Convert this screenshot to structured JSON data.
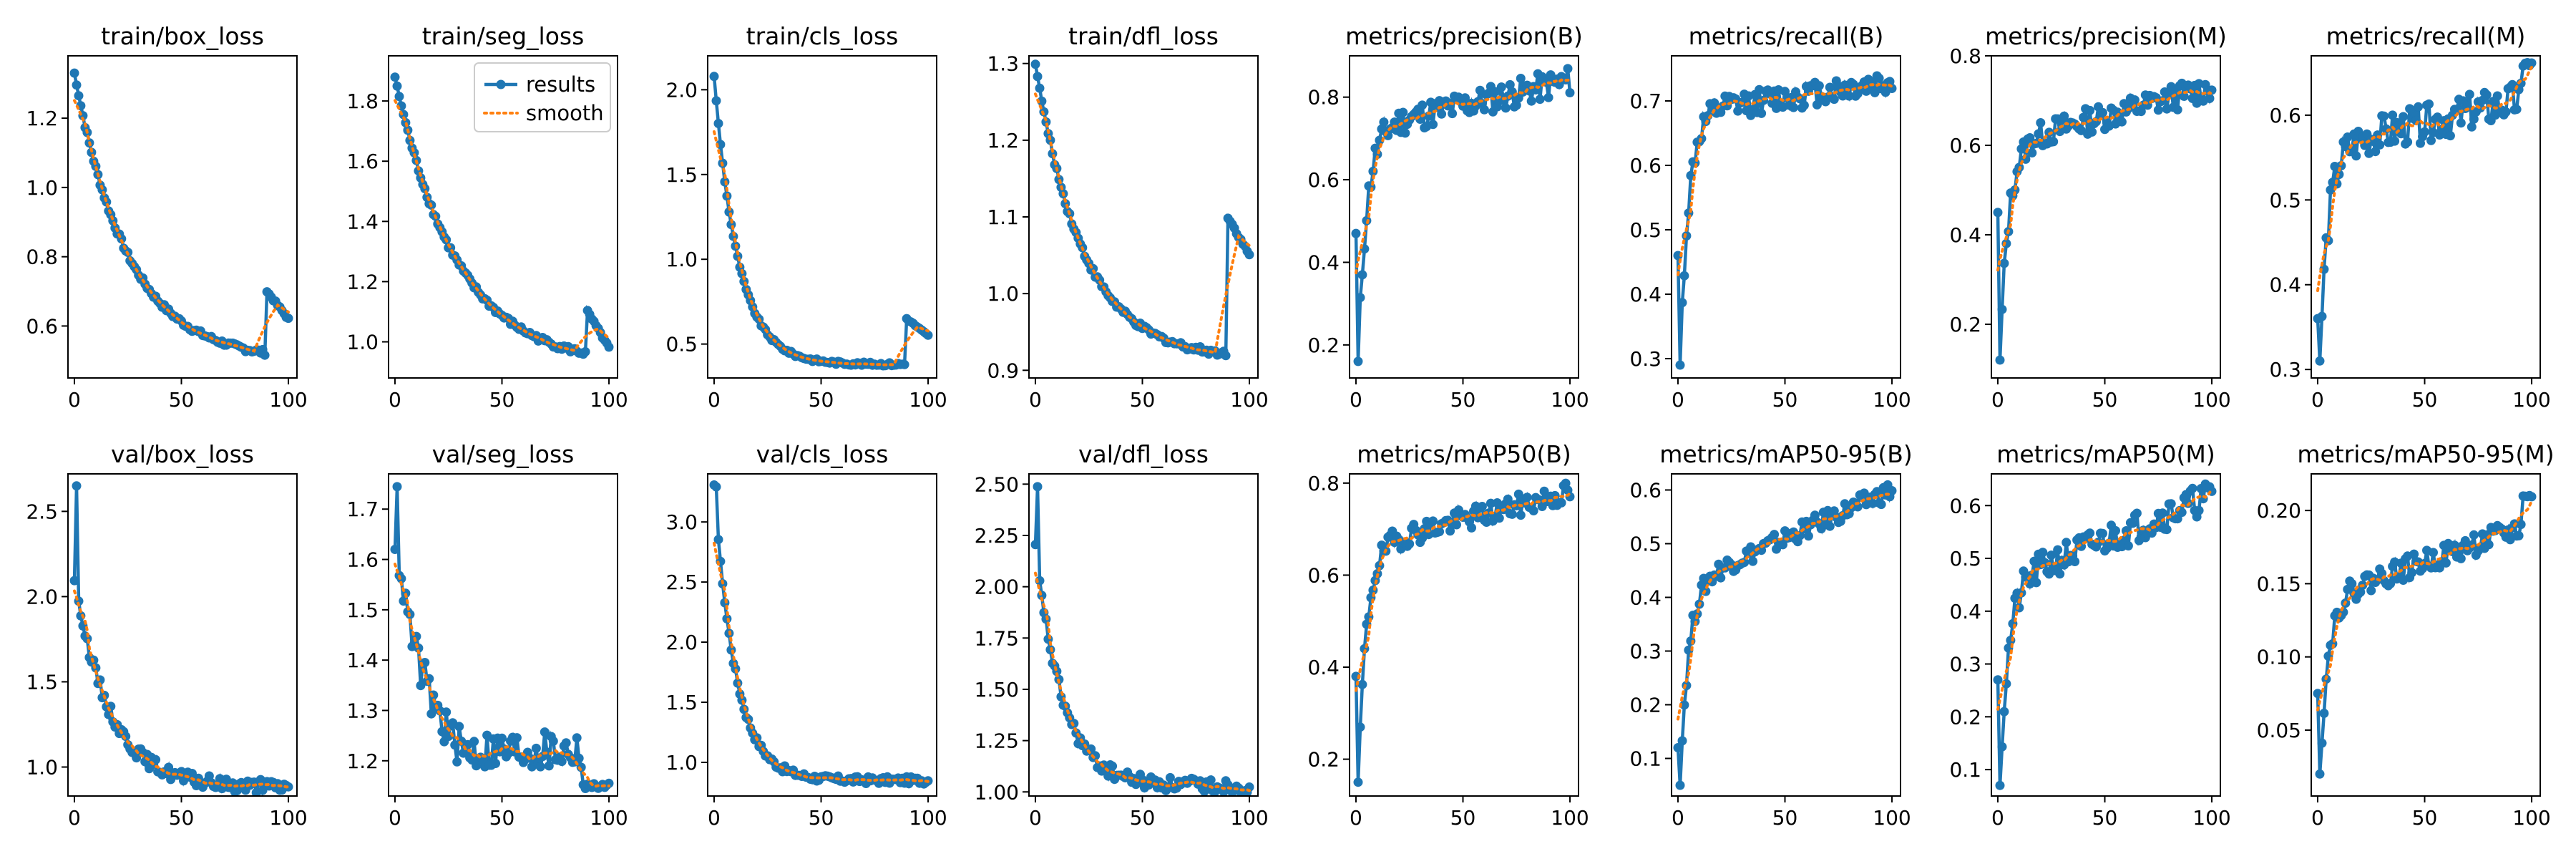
{
  "figure": {
    "colors": {
      "results": "#1f77b4",
      "smooth": "#ff7f0e",
      "axis": "#000000",
      "background": "#ffffff"
    },
    "legend": {
      "entries": [
        "results",
        "smooth"
      ],
      "placement": "top-right",
      "panel_index": 1
    }
  },
  "chart_data": [
    {
      "type": "line",
      "title": "train/box_loss",
      "xlim": [
        -3,
        104
      ],
      "ylim": [
        0.45,
        1.38
      ],
      "xticks": [
        0,
        50,
        100
      ],
      "xtick_labels": [
        "0",
        "50",
        "100"
      ],
      "yticks": [
        0.6,
        0.8,
        1.0,
        1.2
      ],
      "ytick_labels": [
        "0.6",
        "0.8",
        "1.0",
        "1.2"
      ],
      "shape": "decay",
      "start": 1.33,
      "end": 0.5,
      "rate": 0.04,
      "noise": 0.008,
      "spike": {
        "at": 90,
        "to": 0.7,
        "end": 0.62
      }
    },
    {
      "type": "line",
      "title": "train/seg_loss",
      "xlim": [
        -3,
        104
      ],
      "ylim": [
        0.88,
        1.95
      ],
      "xticks": [
        0,
        50,
        100
      ],
      "xtick_labels": [
        "0",
        "50",
        "100"
      ],
      "yticks": [
        1.0,
        1.2,
        1.4,
        1.6,
        1.8
      ],
      "ytick_labels": [
        "1.0",
        "1.2",
        "1.4",
        "1.6",
        "1.8"
      ],
      "shape": "decay",
      "start": 1.88,
      "end": 0.92,
      "rate": 0.035,
      "noise": 0.01,
      "spike": {
        "at": 90,
        "to": 1.1,
        "end": 0.98
      }
    },
    {
      "type": "line",
      "title": "train/cls_loss",
      "xlim": [
        -3,
        104
      ],
      "ylim": [
        0.3,
        2.2
      ],
      "xticks": [
        0,
        50,
        100
      ],
      "xtick_labels": [
        "0",
        "50",
        "100"
      ],
      "yticks": [
        0.5,
        1.0,
        1.5,
        2.0
      ],
      "ytick_labels": [
        "0.5",
        "1.0",
        "1.5",
        "2.0"
      ],
      "shape": "decay",
      "start": 2.08,
      "end": 0.38,
      "rate": 0.09,
      "noise": 0.01,
      "spike": {
        "at": 90,
        "to": 0.65,
        "end": 0.55
      }
    },
    {
      "type": "line",
      "title": "train/dfl_loss",
      "xlim": [
        -3,
        104
      ],
      "ylim": [
        0.89,
        1.31
      ],
      "xticks": [
        0,
        50,
        100
      ],
      "xtick_labels": [
        "0",
        "50",
        "100"
      ],
      "yticks": [
        0.9,
        1.0,
        1.1,
        1.2,
        1.3
      ],
      "ytick_labels": [
        "0.9",
        "1.0",
        "1.1",
        "1.2",
        "1.3"
      ],
      "shape": "decay",
      "start": 1.3,
      "end": 0.915,
      "rate": 0.045,
      "noise": 0.004,
      "spike": {
        "at": 90,
        "to": 1.1,
        "end": 1.05
      }
    },
    {
      "type": "line",
      "title": "metrics/precision(B)",
      "xlim": [
        -3,
        104
      ],
      "ylim": [
        0.12,
        0.9
      ],
      "xticks": [
        0,
        50,
        100
      ],
      "xtick_labels": [
        "0",
        "50",
        "100"
      ],
      "yticks": [
        0.2,
        0.4,
        0.6,
        0.8
      ],
      "ytick_labels": [
        "0.2",
        "0.4",
        "0.6",
        "0.8"
      ],
      "shape": "rise",
      "start": 0.47,
      "dip": 0.16,
      "plateau": 0.72,
      "end": 0.84,
      "noise": 0.035
    },
    {
      "type": "line",
      "title": "metrics/recall(B)",
      "xlim": [
        -3,
        104
      ],
      "ylim": [
        0.27,
        0.77
      ],
      "xticks": [
        0,
        50,
        100
      ],
      "xtick_labels": [
        "0",
        "50",
        "100"
      ],
      "yticks": [
        0.3,
        0.4,
        0.5,
        0.6,
        0.7
      ],
      "ytick_labels": [
        "0.3",
        "0.4",
        "0.5",
        "0.6",
        "0.7"
      ],
      "shape": "rise",
      "start": 0.46,
      "dip": 0.29,
      "plateau": 0.68,
      "end": 0.73,
      "noise": 0.02
    },
    {
      "type": "line",
      "title": "metrics/precision(M)",
      "xlim": [
        -3,
        104
      ],
      "ylim": [
        0.08,
        0.8
      ],
      "xticks": [
        0,
        50,
        100
      ],
      "xtick_labels": [
        "0",
        "50",
        "100"
      ],
      "yticks": [
        0.2,
        0.4,
        0.6,
        0.8
      ],
      "ytick_labels": [
        "0.2",
        "0.4",
        "0.6",
        "0.8"
      ],
      "shape": "rise",
      "start": 0.45,
      "dip": 0.12,
      "plateau": 0.6,
      "end": 0.73,
      "noise": 0.03
    },
    {
      "type": "line",
      "title": "metrics/recall(M)",
      "xlim": [
        -3,
        104
      ],
      "ylim": [
        0.29,
        0.67
      ],
      "xticks": [
        0,
        50,
        100
      ],
      "xtick_labels": [
        "0",
        "50",
        "100"
      ],
      "yticks": [
        0.3,
        0.4,
        0.5,
        0.6
      ],
      "ytick_labels": [
        "0.3",
        "0.4",
        "0.5",
        "0.6"
      ],
      "shape": "rise",
      "start": 0.36,
      "dip": 0.31,
      "plateau": 0.56,
      "end": 0.62,
      "noise": 0.022,
      "tail": 0.66
    },
    {
      "type": "line",
      "title": "val/box_loss",
      "xlim": [
        -3,
        104
      ],
      "ylim": [
        0.83,
        2.72
      ],
      "xticks": [
        0,
        50,
        100
      ],
      "xtick_labels": [
        "0",
        "50",
        "100"
      ],
      "yticks": [
        1.0,
        1.5,
        2.0,
        2.5
      ],
      "ytick_labels": [
        "1.0",
        "1.5",
        "2.0",
        "2.5"
      ],
      "shape": "decay",
      "start": 2.1,
      "peak": 2.65,
      "end": 0.88,
      "rate": 0.06,
      "noise": 0.04
    },
    {
      "type": "line",
      "title": "val/seg_loss",
      "xlim": [
        -3,
        104
      ],
      "ylim": [
        1.13,
        1.77
      ],
      "xticks": [
        0,
        50,
        100
      ],
      "xtick_labels": [
        "0",
        "50",
        "100"
      ],
      "yticks": [
        1.2,
        1.3,
        1.4,
        1.5,
        1.6,
        1.7
      ],
      "ytick_labels": [
        "1.2",
        "1.3",
        "1.4",
        "1.5",
        "1.6",
        "1.7"
      ],
      "shape": "decay",
      "start": 1.63,
      "peak": 1.75,
      "end": 1.15,
      "rate": 0.06,
      "noise": 0.04,
      "floor": 1.22
    },
    {
      "type": "line",
      "title": "val/cls_loss",
      "xlim": [
        -3,
        104
      ],
      "ylim": [
        0.72,
        3.4
      ],
      "xticks": [
        0,
        50,
        100
      ],
      "xtick_labels": [
        "0",
        "50",
        "100"
      ],
      "yticks": [
        1.0,
        1.5,
        2.0,
        2.5,
        3.0
      ],
      "ytick_labels": [
        "1.0",
        "1.5",
        "2.0",
        "2.5",
        "3.0"
      ],
      "shape": "decay",
      "start": 3.3,
      "peak": 3.3,
      "end": 0.85,
      "rate": 0.1,
      "noise": 0.03
    },
    {
      "type": "line",
      "title": "val/dfl_loss",
      "xlim": [
        -3,
        104
      ],
      "ylim": [
        0.98,
        2.55
      ],
      "xticks": [
        0,
        50,
        100
      ],
      "xtick_labels": [
        "0",
        "50",
        "100"
      ],
      "yticks": [
        1.0,
        1.25,
        1.5,
        1.75,
        2.0,
        2.25,
        2.5
      ],
      "ytick_labels": [
        "1.00",
        "1.25",
        "1.50",
        "1.75",
        "2.00",
        "2.25",
        "2.50"
      ],
      "shape": "decay",
      "start": 2.2,
      "peak": 2.48,
      "end": 1.03,
      "rate": 0.08,
      "noise": 0.035
    },
    {
      "type": "line",
      "title": "metrics/mAP50(B)",
      "xlim": [
        -3,
        104
      ],
      "ylim": [
        0.12,
        0.82
      ],
      "xticks": [
        0,
        50,
        100
      ],
      "xtick_labels": [
        "0",
        "50",
        "100"
      ],
      "yticks": [
        0.2,
        0.4,
        0.6,
        0.8
      ],
      "ytick_labels": [
        "0.2",
        "0.4",
        "0.6",
        "0.8"
      ],
      "shape": "rise",
      "start": 0.38,
      "dip": 0.15,
      "plateau": 0.66,
      "end": 0.78,
      "noise": 0.025
    },
    {
      "type": "line",
      "title": "metrics/mAP50-95(B)",
      "xlim": [
        -3,
        104
      ],
      "ylim": [
        0.03,
        0.63
      ],
      "xticks": [
        0,
        50,
        100
      ],
      "xtick_labels": [
        "0",
        "50",
        "100"
      ],
      "yticks": [
        0.1,
        0.2,
        0.3,
        0.4,
        0.5,
        0.6
      ],
      "ytick_labels": [
        "0.1",
        "0.2",
        "0.3",
        "0.4",
        "0.5",
        "0.6"
      ],
      "shape": "rise",
      "start": 0.12,
      "dip": 0.05,
      "plateau": 0.42,
      "end": 0.6,
      "noise": 0.018
    },
    {
      "type": "line",
      "title": "metrics/mAP50(M)",
      "xlim": [
        -3,
        104
      ],
      "ylim": [
        0.05,
        0.66
      ],
      "xticks": [
        0,
        50,
        100
      ],
      "xtick_labels": [
        "0",
        "50",
        "100"
      ],
      "yticks": [
        0.1,
        0.2,
        0.3,
        0.4,
        0.5,
        0.6
      ],
      "ytick_labels": [
        "0.1",
        "0.2",
        "0.3",
        "0.4",
        "0.5",
        "0.6"
      ],
      "shape": "rise",
      "start": 0.27,
      "dip": 0.07,
      "plateau": 0.45,
      "end": 0.62,
      "noise": 0.03
    },
    {
      "type": "line",
      "title": "metrics/mAP50-95(M)",
      "xlim": [
        -3,
        104
      ],
      "ylim": [
        0.005,
        0.225
      ],
      "xticks": [
        0,
        50,
        100
      ],
      "xtick_labels": [
        "0",
        "50",
        "100"
      ],
      "yticks": [
        0.05,
        0.1,
        0.15,
        0.2
      ],
      "ytick_labels": [
        "0.05",
        "0.10",
        "0.15",
        "0.20"
      ],
      "shape": "rise",
      "start": 0.075,
      "dip": 0.02,
      "plateau": 0.14,
      "end": 0.19,
      "noise": 0.008,
      "tail": 0.21
    }
  ]
}
